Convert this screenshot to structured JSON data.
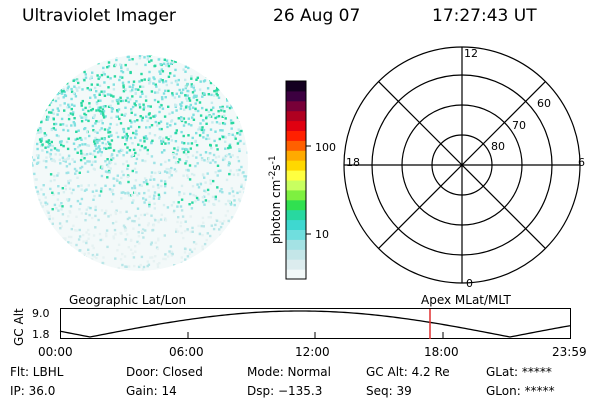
{
  "header": {
    "instrument": "Ultraviolet Imager",
    "date": "26 Aug 07",
    "time": "17:27:43 UT"
  },
  "colorbar": {
    "label": "photon cm",
    "label_exp1": "-2",
    "label_mid": "s",
    "label_exp2": "-1",
    "ticks": [
      "100",
      "10"
    ],
    "colors": [
      "#f2f8f8",
      "#dcecee",
      "#c4e6e8",
      "#a4e2e4",
      "#70dede",
      "#3ed8d0",
      "#28d8a0",
      "#30e050",
      "#7ef040",
      "#c8ff60",
      "#ffff40",
      "#ffd800",
      "#ffaa00",
      "#ff6000",
      "#ff2000",
      "#e00010",
      "#b00020",
      "#780038",
      "#3c0040",
      "#140020"
    ]
  },
  "polar": {
    "labels": {
      "noon": "12",
      "midnight": "0",
      "dusk": "18",
      "dawn": "6"
    },
    "lat_labels": [
      "60",
      "70",
      "80"
    ]
  },
  "timeline": {
    "left_label": "Geographic Lat/Lon",
    "right_label": "Apex MLat/MLT",
    "axis_label": "GC Alt",
    "ymax_label": "9.0",
    "ymin_label": "1.8",
    "x_ticks": [
      "00:00",
      "06:00",
      "12:00",
      "18:00",
      "23:59"
    ]
  },
  "info": {
    "flt": "Flt: LBHL",
    "ip": "IP: 36.0",
    "door": "Door: Closed",
    "gain": "Gain: 14",
    "mode": "Mode: Normal",
    "dsp": "Dsp: −135.3",
    "gcalt": "GC Alt: 4.2 Re",
    "seq": "Seq: 39",
    "glat": "GLat: *****",
    "glon": "GLon: *****"
  },
  "colors": {
    "marker": "#e03030",
    "teal": "#7fe0e0",
    "green": "#20d890"
  }
}
